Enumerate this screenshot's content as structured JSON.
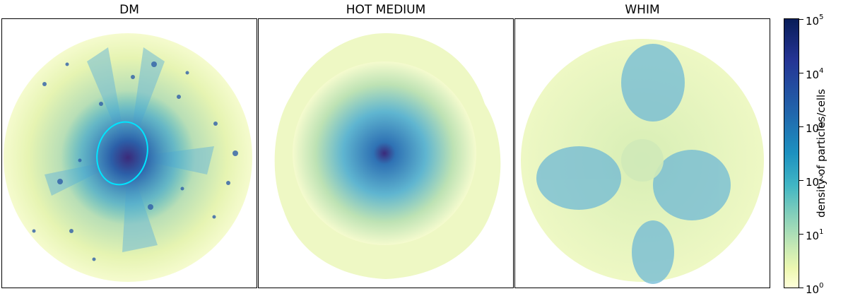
{
  "panels": [
    {
      "title": "DM"
    },
    {
      "title": "HOT MEDIUM"
    },
    {
      "title": "WHIM"
    }
  ],
  "colorbar": {
    "label": "density of particles/cells",
    "ticks": [
      {
        "base": "10",
        "exp": "5"
      },
      {
        "base": "10",
        "exp": "4"
      },
      {
        "base": "10",
        "exp": "3"
      },
      {
        "base": "10",
        "exp": "2"
      },
      {
        "base": "10",
        "exp": "1"
      },
      {
        "base": "10",
        "exp": "0"
      }
    ],
    "colormap": "YlGnBu",
    "scale": "log",
    "range": [
      1,
      100000
    ]
  },
  "colors": {
    "low": "#ffffd9",
    "mid": "#41b6c4",
    "high": "#081d58",
    "ellipse": "#00e5ff"
  }
}
